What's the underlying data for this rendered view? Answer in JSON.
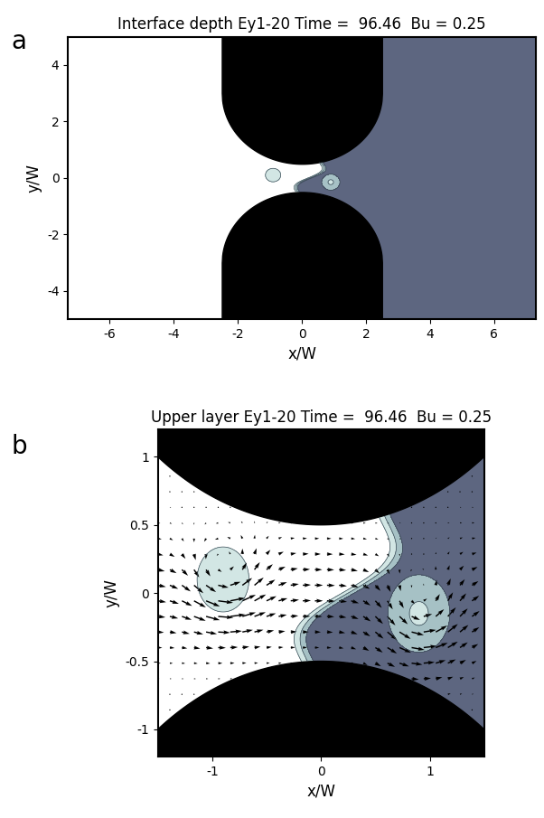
{
  "chart_data": [
    {
      "type": "contour",
      "panel": "a",
      "title": "Interface depth Ey1-20 Time =  96.46  Bu = 0.25",
      "xlabel": "x/W",
      "ylabel": "y/W",
      "xlim": [
        -7.3,
        7.3
      ],
      "ylim": [
        -5,
        5
      ],
      "xticks": [
        -6,
        -4,
        -2,
        0,
        2,
        4,
        6
      ],
      "yticks": [
        -4,
        -2,
        0,
        2,
        4
      ]
    },
    {
      "type": "contour_vector",
      "panel": "b",
      "title": "Upper layer Ey1-20 Time =  96.46  Bu = 0.25",
      "xlabel": "x/W",
      "ylabel": "y/W",
      "xlim": [
        -1.5,
        1.5
      ],
      "ylim": [
        -1.2,
        1.2
      ],
      "xticks": [
        -1,
        0,
        1
      ],
      "yticks": [
        -1,
        -0.5,
        0,
        0.5,
        1
      ]
    }
  ]
}
